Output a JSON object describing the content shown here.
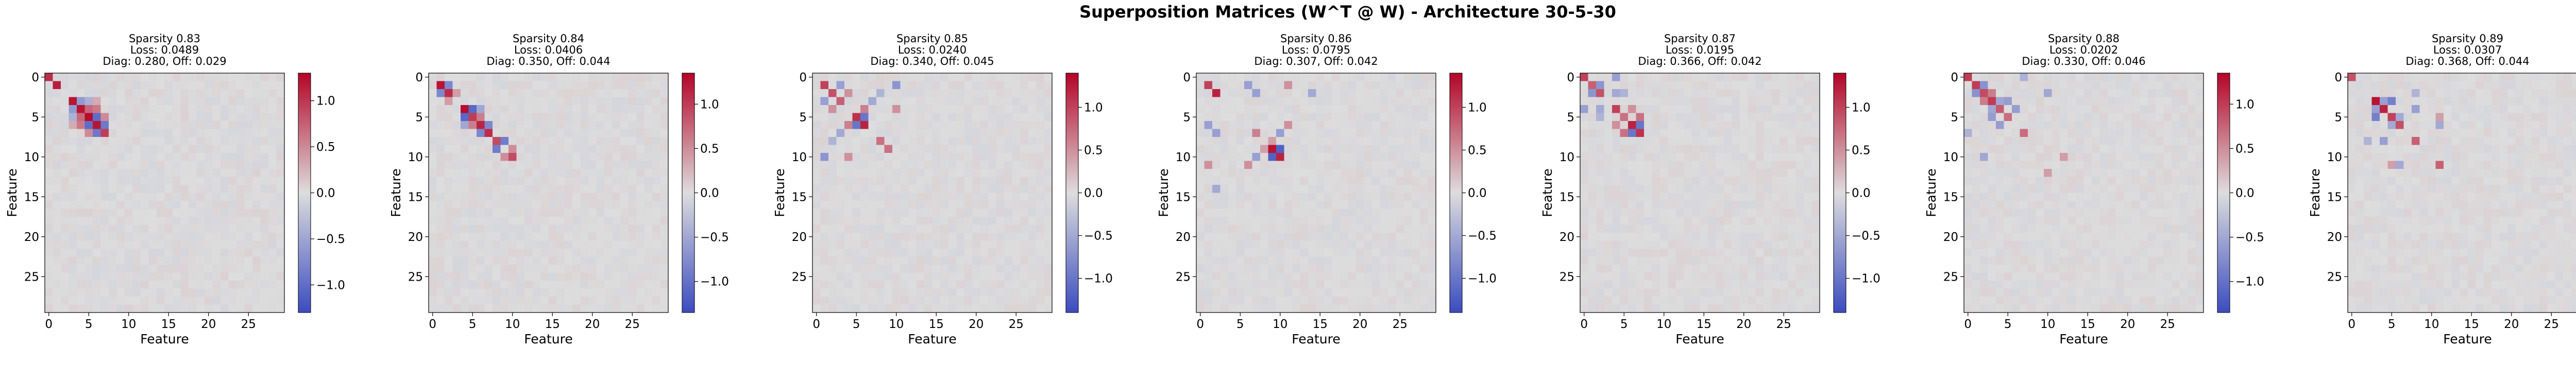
{
  "figure": {
    "title": "Superposition Matrices (W^T @ W) - Architecture 30-5-30"
  },
  "chart_data": {
    "type": "heatmap",
    "matrix_size": 30,
    "colormap": "coolwarm",
    "xlabel": "Feature",
    "ylabel": "Feature",
    "xticks": [
      0,
      5,
      10,
      15,
      20,
      25
    ],
    "yticks": [
      0,
      5,
      10,
      15,
      20,
      25
    ],
    "neg_color": "#3b4cc0",
    "mid_color": "#dddddd",
    "pos_color": "#b40426",
    "panels": [
      {
        "title_lines": [
          "Sparsity 0.83",
          "Loss: 0.0489",
          "Diag: 0.280, Off: 0.029"
        ],
        "vmin": -1.3,
        "vmax": 1.3,
        "cbar_ticks": [
          1.0,
          0.5,
          0.0,
          -0.5,
          -1.0
        ],
        "cbar_tick_labels": [
          "1.0",
          "0.5",
          "0.0",
          "−0.5",
          "−1.0"
        ],
        "cells": [
          [
            0,
            0,
            1.05
          ],
          [
            1,
            1,
            1.15
          ],
          [
            3,
            3,
            1.2
          ],
          [
            4,
            4,
            1.2
          ],
          [
            5,
            5,
            1.25
          ],
          [
            6,
            6,
            1.2
          ],
          [
            7,
            7,
            0.95
          ],
          [
            3,
            4,
            -0.6
          ],
          [
            4,
            3,
            -0.6
          ],
          [
            4,
            5,
            0.7
          ],
          [
            5,
            4,
            0.7
          ],
          [
            5,
            6,
            -1.0
          ],
          [
            6,
            5,
            -1.0
          ],
          [
            4,
            6,
            0.6
          ],
          [
            6,
            4,
            0.6
          ],
          [
            6,
            7,
            -0.9
          ],
          [
            7,
            6,
            -0.9
          ],
          [
            5,
            7,
            0.5
          ],
          [
            7,
            5,
            0.5
          ],
          [
            3,
            5,
            -0.4
          ],
          [
            5,
            3,
            -0.4
          ],
          [
            3,
            6,
            0.3
          ],
          [
            6,
            3,
            0.3
          ]
        ]
      },
      {
        "title_lines": [
          "Sparsity 0.84",
          "Loss: 0.0406",
          "Diag: 0.350, Off: 0.044"
        ],
        "vmin": -1.35,
        "vmax": 1.35,
        "cbar_ticks": [
          1.0,
          0.5,
          0.0,
          -0.5,
          -1.0
        ],
        "cbar_tick_labels": [
          "1.0",
          "0.5",
          "0.0",
          "−0.5",
          "−1.0"
        ],
        "cells": [
          [
            1,
            1,
            1.25
          ],
          [
            2,
            2,
            1.1
          ],
          [
            4,
            4,
            1.3
          ],
          [
            5,
            5,
            1.0
          ],
          [
            6,
            6,
            1.15
          ],
          [
            7,
            7,
            1.1
          ],
          [
            8,
            8,
            0.9
          ],
          [
            10,
            10,
            0.9
          ],
          [
            1,
            2,
            -0.8
          ],
          [
            2,
            1,
            -0.8
          ],
          [
            4,
            5,
            -1.1
          ],
          [
            5,
            4,
            -1.1
          ],
          [
            5,
            6,
            0.6
          ],
          [
            6,
            5,
            0.6
          ],
          [
            6,
            7,
            -0.8
          ],
          [
            7,
            6,
            -0.8
          ],
          [
            8,
            9,
            -0.9
          ],
          [
            9,
            8,
            -0.9
          ],
          [
            4,
            6,
            -0.5
          ],
          [
            6,
            4,
            -0.5
          ],
          [
            2,
            3,
            0.4
          ],
          [
            3,
            2,
            0.4
          ],
          [
            9,
            10,
            0.5
          ],
          [
            10,
            9,
            0.5
          ]
        ]
      },
      {
        "title_lines": [
          "Sparsity 0.85",
          "Loss: 0.0240",
          "Diag: 0.340, Off: 0.045"
        ],
        "vmin": -1.4,
        "vmax": 1.4,
        "cbar_ticks": [
          1.0,
          0.5,
          0.0,
          -0.5,
          -1.0
        ],
        "cbar_tick_labels": [
          "1.0",
          "0.5",
          "0.0",
          "−0.5",
          "−1.0"
        ],
        "cells": [
          [
            1,
            1,
            1.0
          ],
          [
            2,
            2,
            0.9
          ],
          [
            3,
            3,
            0.8
          ],
          [
            5,
            5,
            1.1
          ],
          [
            6,
            6,
            1.2
          ],
          [
            8,
            8,
            0.7
          ],
          [
            9,
            9,
            0.7
          ],
          [
            1,
            3,
            -0.6
          ],
          [
            3,
            1,
            -0.6
          ],
          [
            2,
            4,
            0.5
          ],
          [
            4,
            2,
            0.5
          ],
          [
            5,
            6,
            -1.0
          ],
          [
            6,
            5,
            -1.0
          ],
          [
            4,
            6,
            0.6
          ],
          [
            6,
            4,
            0.6
          ],
          [
            1,
            10,
            -0.7
          ],
          [
            10,
            1,
            -0.7
          ],
          [
            3,
            7,
            -0.5
          ],
          [
            7,
            3,
            -0.5
          ],
          [
            4,
            10,
            0.5
          ],
          [
            10,
            4,
            0.5
          ],
          [
            2,
            8,
            -0.4
          ],
          [
            8,
            2,
            -0.4
          ]
        ]
      },
      {
        "title_lines": [
          "Sparsity 0.86",
          "Loss: 0.0795",
          "Diag: 0.307, Off: 0.042"
        ],
        "vmin": -1.4,
        "vmax": 1.4,
        "cbar_ticks": [
          1.0,
          0.5,
          0.0,
          -0.5,
          -1.0
        ],
        "cbar_tick_labels": [
          "1.0",
          "0.5",
          "0.0",
          "−0.5",
          "−1.0"
        ],
        "cells": [
          [
            1,
            1,
            1.0
          ],
          [
            2,
            2,
            1.2
          ],
          [
            9,
            9,
            1.3
          ],
          [
            10,
            10,
            1.2
          ],
          [
            7,
            7,
            0.6
          ],
          [
            9,
            10,
            -1.2
          ],
          [
            10,
            9,
            -1.2
          ],
          [
            1,
            6,
            -0.6
          ],
          [
            6,
            1,
            -0.6
          ],
          [
            2,
            7,
            -0.6
          ],
          [
            7,
            2,
            -0.6
          ],
          [
            6,
            11,
            0.5
          ],
          [
            11,
            6,
            0.5
          ],
          [
            1,
            11,
            0.5
          ],
          [
            11,
            1,
            0.5
          ],
          [
            2,
            14,
            -0.5
          ],
          [
            14,
            2,
            -0.5
          ],
          [
            7,
            10,
            -0.6
          ],
          [
            10,
            7,
            -0.6
          ],
          [
            8,
            9,
            0.4
          ],
          [
            9,
            8,
            0.4
          ]
        ]
      },
      {
        "title_lines": [
          "Sparsity 0.87",
          "Loss: 0.0195",
          "Diag: 0.366, Off: 0.042"
        ],
        "vmin": -1.4,
        "vmax": 1.4,
        "cbar_ticks": [
          1.0,
          0.5,
          0.0,
          -0.5,
          -1.0
        ],
        "cbar_tick_labels": [
          "1.0",
          "0.5",
          "0.0",
          "−0.5",
          "−1.0"
        ],
        "cells": [
          [
            0,
            0,
            1.0
          ],
          [
            1,
            1,
            0.8
          ],
          [
            2,
            2,
            0.9
          ],
          [
            4,
            4,
            1.0
          ],
          [
            6,
            6,
            1.2
          ],
          [
            7,
            7,
            1.1
          ],
          [
            5,
            5,
            0.7
          ],
          [
            1,
            2,
            -0.7
          ],
          [
            2,
            1,
            -0.7
          ],
          [
            2,
            4,
            -0.5
          ],
          [
            4,
            2,
            -0.5
          ],
          [
            6,
            7,
            -1.0
          ],
          [
            7,
            6,
            -1.0
          ],
          [
            0,
            4,
            -0.6
          ],
          [
            4,
            0,
            -0.6
          ],
          [
            5,
            7,
            0.7
          ],
          [
            7,
            5,
            0.7
          ],
          [
            4,
            6,
            0.5
          ],
          [
            6,
            4,
            0.5
          ],
          [
            2,
            5,
            -0.4
          ],
          [
            5,
            2,
            -0.4
          ]
        ]
      },
      {
        "title_lines": [
          "Sparsity 0.88",
          "Loss: 0.0202",
          "Diag: 0.330, Off: 0.046"
        ],
        "vmin": -1.35,
        "vmax": 1.35,
        "cbar_ticks": [
          1.0,
          0.5,
          0.0,
          -0.5,
          -1.0
        ],
        "cbar_tick_labels": [
          "1.0",
          "0.5",
          "0.0",
          "−0.5",
          "−1.0"
        ],
        "cells": [
          [
            0,
            0,
            1.0
          ],
          [
            1,
            1,
            1.0
          ],
          [
            2,
            2,
            0.9
          ],
          [
            3,
            3,
            1.0
          ],
          [
            4,
            4,
            0.8
          ],
          [
            5,
            5,
            0.7
          ],
          [
            7,
            7,
            0.7
          ],
          [
            1,
            2,
            -0.7
          ],
          [
            2,
            1,
            -0.7
          ],
          [
            2,
            3,
            0.6
          ],
          [
            3,
            2,
            0.6
          ],
          [
            3,
            5,
            -0.6
          ],
          [
            5,
            3,
            -0.6
          ],
          [
            4,
            6,
            -0.6
          ],
          [
            6,
            4,
            -0.6
          ],
          [
            3,
            4,
            -0.5
          ],
          [
            4,
            3,
            -0.5
          ],
          [
            2,
            10,
            -0.5
          ],
          [
            10,
            2,
            -0.5
          ],
          [
            0,
            7,
            -0.4
          ],
          [
            7,
            0,
            -0.4
          ],
          [
            10,
            12,
            0.4
          ],
          [
            12,
            10,
            0.4
          ]
        ]
      },
      {
        "title_lines": [
          "Sparsity 0.89",
          "Loss: 0.0307",
          "Diag: 0.368, Off: 0.044"
        ],
        "vmin": -1.4,
        "vmax": 1.4,
        "cbar_ticks": [
          1.0,
          0.5,
          0.0,
          -0.5,
          -1.0
        ],
        "cbar_tick_labels": [
          "1.0",
          "0.5",
          "0.0",
          "−0.5",
          "−1.0"
        ],
        "cells": [
          [
            0,
            0,
            0.9
          ],
          [
            3,
            3,
            1.3
          ],
          [
            4,
            4,
            1.2
          ],
          [
            5,
            5,
            1.0
          ],
          [
            6,
            6,
            0.9
          ],
          [
            8,
            8,
            0.8
          ],
          [
            11,
            11,
            0.8
          ],
          [
            3,
            4,
            -0.6
          ],
          [
            4,
            3,
            -0.6
          ],
          [
            3,
            5,
            -0.9
          ],
          [
            5,
            3,
            -0.9
          ],
          [
            5,
            6,
            -0.5
          ],
          [
            6,
            5,
            -0.5
          ],
          [
            4,
            8,
            -0.6
          ],
          [
            8,
            4,
            -0.6
          ],
          [
            6,
            11,
            -0.5
          ],
          [
            11,
            6,
            -0.5
          ],
          [
            2,
            8,
            -0.4
          ],
          [
            8,
            2,
            -0.4
          ],
          [
            5,
            11,
            0.4
          ],
          [
            11,
            5,
            0.4
          ]
        ]
      }
    ]
  }
}
